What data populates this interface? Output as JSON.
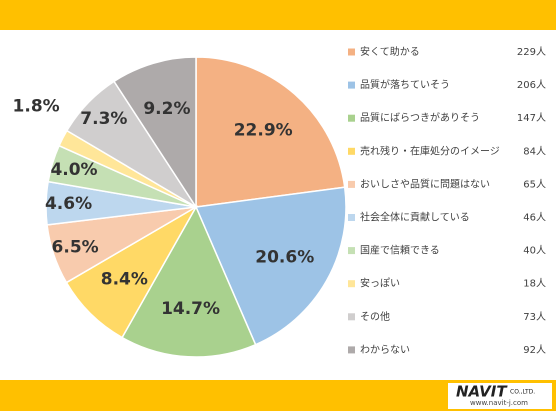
{
  "chart_data": {
    "type": "pie",
    "categories": [
      "安くて助かる",
      "品質が落ちていそう",
      "品質にばらつきがありそう",
      "売れ残り・在庫処分のイメージ",
      "おいしさや品質に問題はない",
      "社会全体に貢献している",
      "国産で信頼できる",
      "安っぽい",
      "その他",
      "わからない"
    ],
    "values": [
      22.9,
      20.6,
      14.7,
      8.4,
      6.5,
      4.6,
      4.0,
      1.8,
      7.3,
      9.2
    ],
    "value_labels": [
      "22.9%",
      "20.6%",
      "14.7%",
      "8.4%",
      "6.5%",
      "4.6%",
      "4.0%",
      "1.8%",
      "7.3%",
      "9.2%"
    ],
    "counts": [
      229,
      206,
      147,
      84,
      65,
      46,
      40,
      18,
      73,
      92
    ],
    "count_labels": [
      "229人",
      "206人",
      "147人",
      "84人",
      "65人",
      "46人",
      "40人",
      "18人",
      "73人",
      "92人"
    ],
    "colors": [
      "#f4b183",
      "#9dc3e6",
      "#a9d18e",
      "#ffd966",
      "#f8cbad",
      "#bdd7ee",
      "#c5e0b4",
      "#ffe699",
      "#d0cece",
      "#aeaaaa"
    ],
    "legend": "right"
  },
  "footer": {
    "logo": "NAVIT",
    "company": "CO.,LTD.",
    "url": "www.navit-j.com"
  }
}
